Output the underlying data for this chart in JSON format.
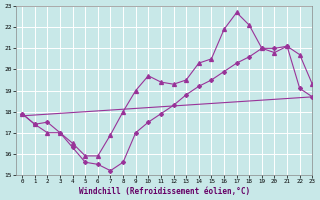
{
  "xlabel": "Windchill (Refroidissement éolien,°C)",
  "bg_color": "#c8e8e8",
  "grid_color": "#aacccc",
  "line_color": "#993399",
  "xlim": [
    -0.5,
    23
  ],
  "ylim": [
    15,
    23
  ],
  "yticks": [
    15,
    16,
    17,
    18,
    19,
    20,
    21,
    22,
    23
  ],
  "xticks": [
    0,
    1,
    2,
    3,
    4,
    5,
    6,
    7,
    8,
    9,
    10,
    11,
    12,
    13,
    14,
    15,
    16,
    17,
    18,
    19,
    20,
    21,
    22,
    23
  ],
  "line1_x": [
    0,
    1,
    2,
    3,
    4,
    5,
    6,
    7,
    8,
    9,
    10,
    11,
    12,
    13,
    14,
    15,
    16,
    17,
    18,
    19,
    20,
    21,
    22,
    23
  ],
  "line1_y": [
    17.9,
    17.4,
    17.5,
    17.0,
    16.3,
    15.6,
    15.5,
    15.2,
    15.6,
    17.0,
    17.5,
    17.9,
    18.3,
    18.8,
    19.2,
    19.5,
    19.9,
    20.3,
    20.6,
    21.0,
    21.0,
    21.1,
    19.1,
    18.7
  ],
  "line2_x": [
    0,
    1,
    2,
    3,
    4,
    5,
    6,
    7,
    8,
    9,
    10,
    11,
    12,
    13,
    14,
    15,
    16,
    17,
    18,
    19,
    20,
    21,
    22,
    23
  ],
  "line2_y": [
    17.9,
    17.4,
    17.0,
    17.0,
    16.5,
    15.9,
    15.9,
    16.9,
    18.0,
    19.0,
    19.7,
    19.4,
    19.3,
    19.5,
    20.3,
    20.5,
    21.9,
    22.7,
    22.1,
    21.0,
    20.8,
    21.1,
    20.7,
    19.3
  ],
  "line3_x": [
    0,
    23
  ],
  "line3_y": [
    17.8,
    18.7
  ]
}
